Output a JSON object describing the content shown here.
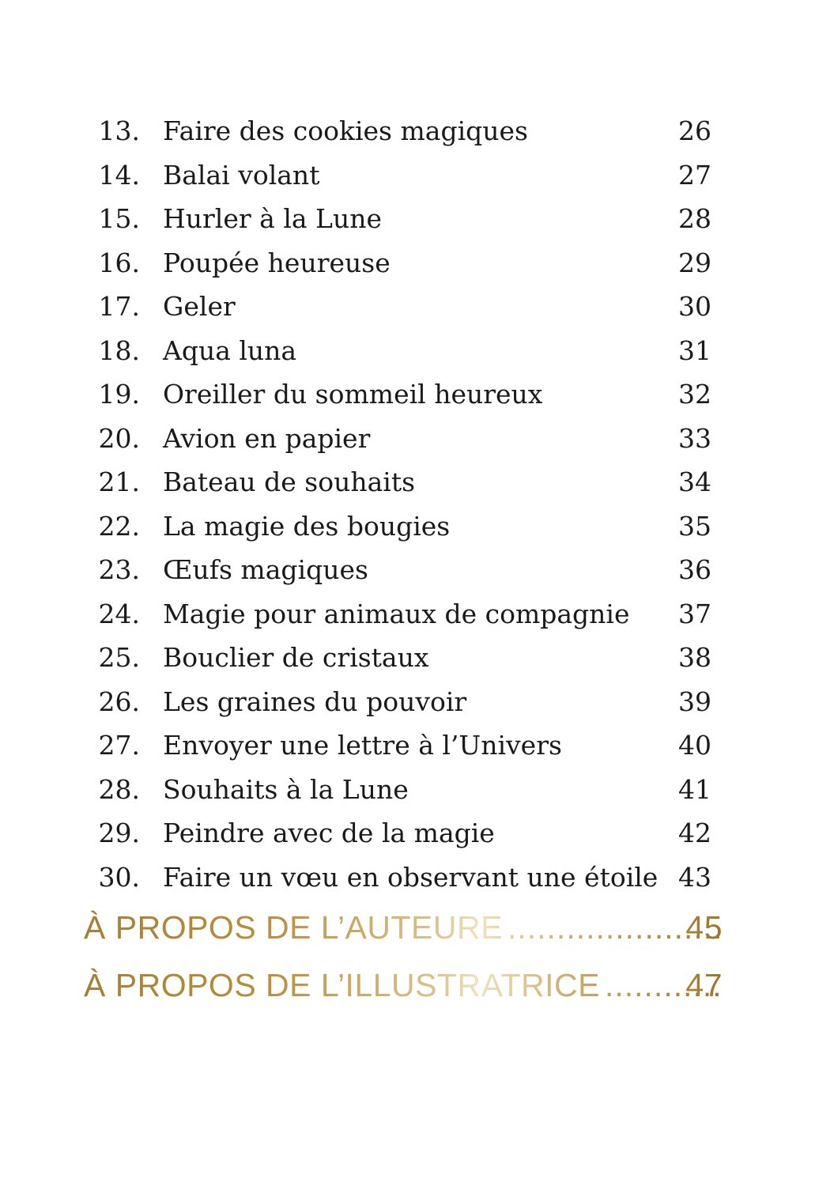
{
  "entries": [
    {
      "num": "13.",
      "title": "Faire des cookies magiques",
      "page": "26"
    },
    {
      "num": "14.",
      "title": "Balai volant",
      "page": "27"
    },
    {
      "num": "15.",
      "title": "Hurler à la Lune",
      "page": "28"
    },
    {
      "num": "16.",
      "title": "Poupée heureuse",
      "page": "29"
    },
    {
      "num": "17.",
      "title": "Geler",
      "page": "30"
    },
    {
      "num": "18.",
      "title": "Aqua luna",
      "page": "31"
    },
    {
      "num": "19.",
      "title": "Oreiller du sommeil heureux",
      "page": "32"
    },
    {
      "num": "20.",
      "title": "Avion en papier",
      "page": "33"
    },
    {
      "num": "21.",
      "title": "Bateau de souhaits",
      "page": "34"
    },
    {
      "num": "22.",
      "title": "La magie des bougies",
      "page": "35"
    },
    {
      "num": "23.",
      "title": "Œufs magiques",
      "page": "36"
    },
    {
      "num": "24.",
      "title": "Magie pour animaux de compagnie",
      "page": "37"
    },
    {
      "num": "25.",
      "title": "Bouclier de cristaux",
      "page": "38"
    },
    {
      "num": "26.",
      "title": "Les graines du pouvoir",
      "page": "39"
    },
    {
      "num": "27.",
      "title": "Envoyer une lettre à l’Univers",
      "page": "40"
    },
    {
      "num": "28.",
      "title": "Souhaits à la Lune",
      "page": "41"
    },
    {
      "num": "29.",
      "title": "Peindre avec de la magie",
      "page": "42"
    },
    {
      "num": "30.",
      "title": "Faire un vœu en observant une étoile",
      "page": "43"
    }
  ],
  "sections": [
    {
      "title": "À PROPOS DE L’AUTEURE",
      "page": "45"
    },
    {
      "title": "À PROPOS DE L’ILLUSTRATRICE",
      "page": "47"
    }
  ],
  "colors": {
    "text": "#1a1a1a",
    "gold": "#b08a3c"
  }
}
